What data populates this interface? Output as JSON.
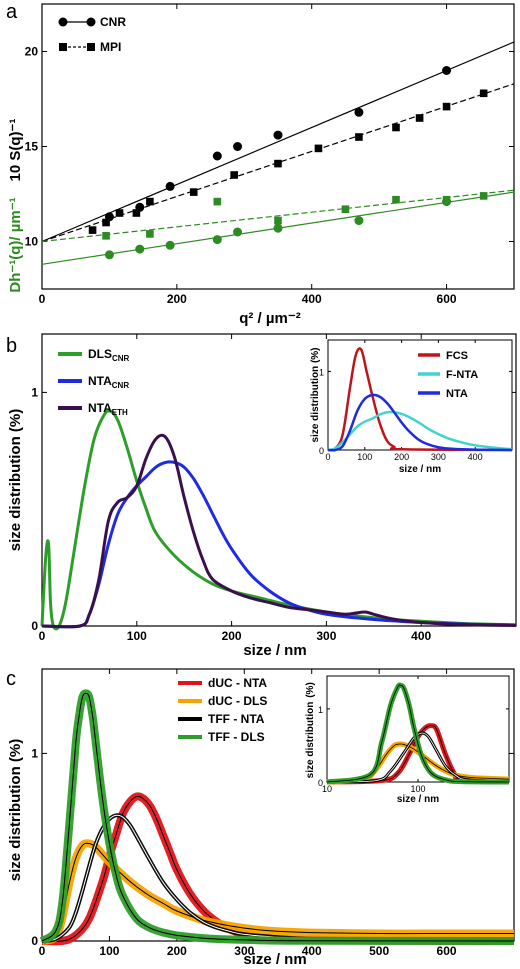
{
  "chart_data": [
    {
      "panel": "a",
      "type": "scatter",
      "xlabel": "q² / µm⁻²",
      "ylabel_left": "Dh⁻¹(q)/ µm⁻¹",
      "ylabel_right": "10 S(q)⁻¹",
      "xlim": [
        0,
        700
      ],
      "ylim": [
        7.5,
        22.5
      ],
      "xticks": [
        0,
        200,
        400,
        600
      ],
      "yticks": [
        10,
        15,
        20
      ],
      "legend": [
        "CNR",
        "MPI"
      ],
      "colors": {
        "black": "#000000",
        "green": "#2e8b22"
      },
      "series": [
        {
          "name": "CNR",
          "color": "#000000",
          "marker": "circle",
          "x": [
            100,
            145,
            190,
            260,
            290,
            350,
            470,
            600
          ],
          "y": [
            11.3,
            11.8,
            12.9,
            14.5,
            15.0,
            15.6,
            16.8,
            19.0
          ],
          "fit": [
            [
              0,
              10.0
            ],
            [
              700,
              20.5
            ]
          ]
        },
        {
          "name": "MPI",
          "color": "#000000",
          "marker": "square",
          "x": [
            75,
            95,
            115,
            140,
            160,
            225,
            285,
            350,
            410,
            470,
            525,
            560,
            600,
            655
          ],
          "y": [
            10.6,
            11.0,
            11.5,
            11.5,
            12.1,
            12.6,
            13.5,
            14.1,
            14.9,
            15.5,
            16.0,
            16.5,
            17.1,
            17.8
          ],
          "fit": [
            [
              0,
              10.0
            ],
            [
              700,
              18.3
            ]
          ],
          "dashed": true
        },
        {
          "name": "green squares",
          "color": "#2e8b22",
          "marker": "square",
          "x": [
            95,
            160,
            260,
            350,
            450,
            525,
            600,
            655
          ],
          "y": [
            10.3,
            10.4,
            12.1,
            11.1,
            11.7,
            12.2,
            12.2,
            12.4
          ],
          "fit": [
            [
              0,
              10.0
            ],
            [
              700,
              12.7
            ]
          ],
          "dashed": true
        },
        {
          "name": "green circles",
          "color": "#2e8b22",
          "marker": "circle",
          "x": [
            100,
            145,
            190,
            260,
            290,
            350,
            470,
            600
          ],
          "y": [
            9.3,
            9.6,
            9.8,
            10.1,
            10.5,
            10.7,
            11.1,
            12.1
          ],
          "fit": [
            [
              0,
              8.8
            ],
            [
              700,
              12.6
            ]
          ]
        }
      ]
    },
    {
      "panel": "b",
      "type": "line",
      "xlabel": "size / nm",
      "ylabel": "size distribution  (%)",
      "xlim": [
        0,
        500
      ],
      "ylim": [
        0,
        1.25
      ],
      "xticks": [
        0,
        100,
        200,
        300,
        400
      ],
      "yticks": [
        0,
        1
      ],
      "legend": [
        {
          "main": "DLS",
          "sub": "CNR",
          "color": "#2e9e2a"
        },
        {
          "main": "NTA",
          "sub": "CNR",
          "color": "#1f2be0"
        },
        {
          "main": "NTA",
          "sub": "ETH",
          "color": "#3a0f4e"
        }
      ],
      "series": [
        {
          "name": "DLS_CNR",
          "color": "#2e9e2a",
          "x": [
            0,
            4,
            7,
            9,
            12,
            18,
            25,
            35,
            45,
            55,
            65,
            72,
            80,
            90,
            100,
            110,
            120,
            140,
            160,
            180,
            200,
            230,
            260,
            300,
            350,
            400,
            450,
            500
          ],
          "y": [
            0,
            0.3,
            0.35,
            0.1,
            0,
            0,
            0.1,
            0.35,
            0.6,
            0.8,
            0.9,
            0.92,
            0.88,
            0.76,
            0.62,
            0.5,
            0.4,
            0.3,
            0.23,
            0.18,
            0.15,
            0.12,
            0.09,
            0.06,
            0.035,
            0.02,
            0.01,
            0.005
          ]
        },
        {
          "name": "NTA_CNR",
          "color": "#1f2be0",
          "x": [
            0,
            40,
            50,
            60,
            70,
            80,
            90,
            100,
            110,
            120,
            130,
            140,
            150,
            160,
            170,
            180,
            190,
            200,
            220,
            240,
            260,
            280,
            300,
            330,
            360,
            400,
            450,
            500
          ],
          "y": [
            0,
            0,
            0.05,
            0.18,
            0.35,
            0.48,
            0.55,
            0.6,
            0.64,
            0.68,
            0.7,
            0.7,
            0.68,
            0.63,
            0.56,
            0.48,
            0.4,
            0.33,
            0.22,
            0.15,
            0.1,
            0.07,
            0.05,
            0.035,
            0.025,
            0.015,
            0.008,
            0.004
          ]
        },
        {
          "name": "NTA_ETH",
          "color": "#3a0f4e",
          "x": [
            0,
            40,
            50,
            60,
            70,
            80,
            90,
            100,
            110,
            120,
            130,
            140,
            150,
            160,
            170,
            180,
            200,
            220,
            240,
            260,
            280,
            300,
            320,
            340,
            350,
            370,
            400,
            450,
            500
          ],
          "y": [
            0,
            0,
            0.05,
            0.2,
            0.45,
            0.53,
            0.55,
            0.6,
            0.72,
            0.8,
            0.81,
            0.72,
            0.55,
            0.4,
            0.28,
            0.2,
            0.15,
            0.12,
            0.1,
            0.08,
            0.07,
            0.06,
            0.05,
            0.06,
            0.05,
            0.03,
            0.015,
            0.005,
            0.002
          ]
        }
      ],
      "inset": {
        "xlabel": "size / nm",
        "ylabel": "size distribution  (%)",
        "xlim": [
          0,
          500
        ],
        "ylim": [
          0,
          1.4
        ],
        "xticks": [
          0,
          100,
          200,
          300,
          400
        ],
        "yticks": [
          0,
          1
        ],
        "legend": [
          "FCS",
          "F-NTA",
          "NTA"
        ],
        "series": [
          {
            "name": "FCS",
            "color": "#c0141c",
            "x": [
              0,
              20,
              40,
              60,
              75,
              90,
              105,
              120,
              140,
              160,
              180,
              200,
              500
            ],
            "y": [
              0,
              0.02,
              0.2,
              0.8,
              1.2,
              1.28,
              1.0,
              0.7,
              0.35,
              0.12,
              0.04,
              0.01,
              0
            ]
          },
          {
            "name": "F-NTA",
            "color": "#40d4cc",
            "x": [
              0,
              20,
              40,
              60,
              80,
              100,
              120,
              140,
              160,
              180,
              200,
              220,
              250,
              280,
              320,
              360,
              400,
              450,
              500
            ],
            "y": [
              0,
              0.02,
              0.1,
              0.2,
              0.3,
              0.36,
              0.4,
              0.45,
              0.48,
              0.48,
              0.46,
              0.42,
              0.34,
              0.25,
              0.16,
              0.1,
              0.06,
              0.03,
              0.01
            ]
          },
          {
            "name": "NTA",
            "color": "#1f2be0",
            "x": [
              0,
              20,
              40,
              60,
              80,
              100,
              120,
              140,
              160,
              180,
              200,
              220,
              250,
              280,
              320,
              400,
              500
            ],
            "y": [
              0,
              0,
              0.05,
              0.25,
              0.5,
              0.65,
              0.7,
              0.68,
              0.6,
              0.48,
              0.35,
              0.24,
              0.12,
              0.06,
              0.02,
              0.005,
              0
            ]
          }
        ]
      }
    },
    {
      "panel": "c",
      "type": "line",
      "xlabel": "size / nm",
      "ylabel": "size distribution  (%)",
      "xlim": [
        0,
        700
      ],
      "ylim": [
        0,
        1.45
      ],
      "xticks": [
        0,
        100,
        200,
        300,
        400,
        500,
        600
      ],
      "yticks": [
        0,
        1
      ],
      "legend": [
        "dUC - NTA",
        "dUC - DLS",
        "TFF - NTA",
        "TFF - DLS"
      ],
      "series": [
        {
          "name": "dUC - NTA",
          "color": "#e0141a",
          "x": [
            0,
            30,
            50,
            70,
            90,
            100,
            110,
            120,
            130,
            140,
            150,
            160,
            170,
            180,
            190,
            200,
            220,
            240,
            260,
            280,
            300,
            320,
            350,
            400,
            500,
            700
          ],
          "y": [
            0,
            0,
            0.03,
            0.12,
            0.32,
            0.45,
            0.57,
            0.68,
            0.74,
            0.77,
            0.76,
            0.72,
            0.65,
            0.56,
            0.47,
            0.38,
            0.25,
            0.16,
            0.1,
            0.06,
            0.035,
            0.02,
            0.01,
            0.005,
            0.002,
            0
          ]
        },
        {
          "name": "dUC - DLS",
          "color": "#f5a300",
          "x": [
            0,
            20,
            30,
            40,
            50,
            60,
            70,
            80,
            90,
            100,
            120,
            140,
            160,
            180,
            200,
            240,
            280,
            320,
            360,
            400,
            500,
            600,
            700
          ],
          "y": [
            0,
            0.02,
            0.12,
            0.3,
            0.44,
            0.51,
            0.52,
            0.5,
            0.46,
            0.42,
            0.35,
            0.29,
            0.24,
            0.2,
            0.16,
            0.11,
            0.08,
            0.06,
            0.05,
            0.045,
            0.04,
            0.04,
            0.04
          ]
        },
        {
          "name": "TFF - NTA",
          "color": "#000000",
          "x": [
            0,
            20,
            40,
            50,
            60,
            70,
            80,
            90,
            100,
            110,
            120,
            130,
            140,
            160,
            180,
            200,
            220,
            240,
            260,
            280,
            300,
            350,
            400,
            500,
            700
          ],
          "y": [
            0,
            0.01,
            0.07,
            0.15,
            0.27,
            0.4,
            0.52,
            0.6,
            0.65,
            0.67,
            0.66,
            0.62,
            0.56,
            0.43,
            0.31,
            0.22,
            0.15,
            0.1,
            0.07,
            0.05,
            0.035,
            0.02,
            0.01,
            0.005,
            0
          ]
        },
        {
          "name": "TFF - DLS",
          "color": "#2e9e2a",
          "x": [
            0,
            20,
            30,
            40,
            50,
            55,
            60,
            65,
            70,
            75,
            80,
            90,
            100,
            110,
            120,
            140,
            160,
            180,
            200,
            240,
            280,
            320,
            400,
            700
          ],
          "y": [
            0,
            0.05,
            0.2,
            0.6,
            1.05,
            1.2,
            1.3,
            1.32,
            1.3,
            1.2,
            1.05,
            0.75,
            0.52,
            0.35,
            0.24,
            0.12,
            0.07,
            0.045,
            0.03,
            0.015,
            0.008,
            0.004,
            0.001,
            0
          ]
        }
      ],
      "inset": {
        "type": "line",
        "xscale": "log",
        "xlabel": "size / nm",
        "ylabel": "size distribution",
        "yunit": "(%)",
        "xlim": [
          10,
          1000
        ],
        "ylim": [
          0,
          1.45
        ],
        "xticks": [
          10,
          100
        ],
        "yticks": [
          0,
          1
        ],
        "series": [
          {
            "name": "dUC - NTA",
            "color": "#e0141a",
            "x": [
              10,
              40,
              60,
              80,
              100,
              120,
              140,
              160,
              200,
              250,
              300,
              1000
            ],
            "y": [
              0,
              0.02,
              0.12,
              0.38,
              0.62,
              0.74,
              0.77,
              0.72,
              0.38,
              0.12,
              0.04,
              0.01
            ]
          },
          {
            "name": "dUC - DLS",
            "color": "#f5a300",
            "x": [
              10,
              25,
              35,
              45,
              55,
              65,
              75,
              90,
              110,
              140,
              180,
              250,
              400,
              1000
            ],
            "y": [
              0,
              0.03,
              0.18,
              0.38,
              0.5,
              0.52,
              0.5,
              0.45,
              0.37,
              0.27,
              0.18,
              0.1,
              0.06,
              0.04
            ]
          },
          {
            "name": "TFF - NTA",
            "color": "#000000",
            "x": [
              10,
              35,
              50,
              70,
              90,
              110,
              130,
              160,
              200,
              260,
              350,
              1000
            ],
            "y": [
              0,
              0.02,
              0.15,
              0.4,
              0.6,
              0.67,
              0.62,
              0.43,
              0.22,
              0.09,
              0.03,
              0
            ]
          },
          {
            "name": "TFF - DLS",
            "color": "#2e9e2a",
            "x": [
              10,
              30,
              40,
              50,
              60,
              65,
              70,
              80,
              90,
              110,
              140,
              200,
              300,
              1000
            ],
            "y": [
              0,
              0.1,
              0.55,
              1.05,
              1.3,
              1.32,
              1.28,
              1.05,
              0.75,
              0.35,
              0.12,
              0.03,
              0.005,
              0
            ]
          }
        ]
      }
    }
  ],
  "panel_labels": {
    "a": "a",
    "b": "b",
    "c": "c"
  }
}
